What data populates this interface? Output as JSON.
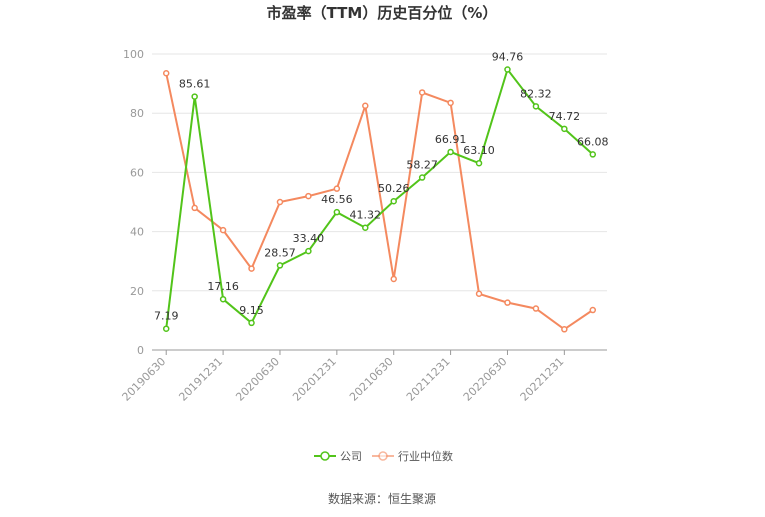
{
  "chart_data": {
    "type": "line",
    "title": "市盈率（TTM）历史百分位（%）",
    "x": [
      "20190630",
      "20190930",
      "20191231",
      "20200331",
      "20200630",
      "20200930",
      "20201231",
      "20210331",
      "20210630",
      "20210930",
      "20211231",
      "20220331",
      "20220630",
      "20220930",
      "20221231",
      "20230331"
    ],
    "x_tick_labels": [
      "20190630",
      "20191231",
      "20200630",
      "20201231",
      "20210630",
      "20211231",
      "20220630",
      "20221231"
    ],
    "ylim": [
      0,
      100
    ],
    "y_ticks": [
      "0",
      "20",
      "40",
      "60",
      "80",
      "100"
    ],
    "grid": true,
    "legend_position": "bottom",
    "series": [
      {
        "name": "公司",
        "color": "#52c41a",
        "values": [
          7.19,
          85.61,
          17.16,
          9.15,
          28.57,
          33.4,
          46.56,
          41.32,
          50.26,
          58.27,
          66.91,
          63.1,
          94.76,
          82.32,
          74.72,
          66.08
        ],
        "labels": [
          "7.19",
          "85.61",
          "17.16",
          "9.15",
          "28.57",
          "33.40",
          "46.56",
          "41.32",
          "50.26",
          "58.27",
          "66.91",
          "63.10",
          "94.76",
          "82.32",
          "74.72",
          "66.08"
        ]
      },
      {
        "name": "行业中位数",
        "color": "#f4895f",
        "values": [
          93.5,
          48.0,
          40.5,
          27.5,
          50.0,
          52.0,
          54.5,
          82.5,
          24.0,
          87.0,
          83.5,
          19.0,
          16.0,
          14.0,
          7.0,
          13.5
        ]
      }
    ],
    "source": "数据来源：恒生聚源"
  }
}
